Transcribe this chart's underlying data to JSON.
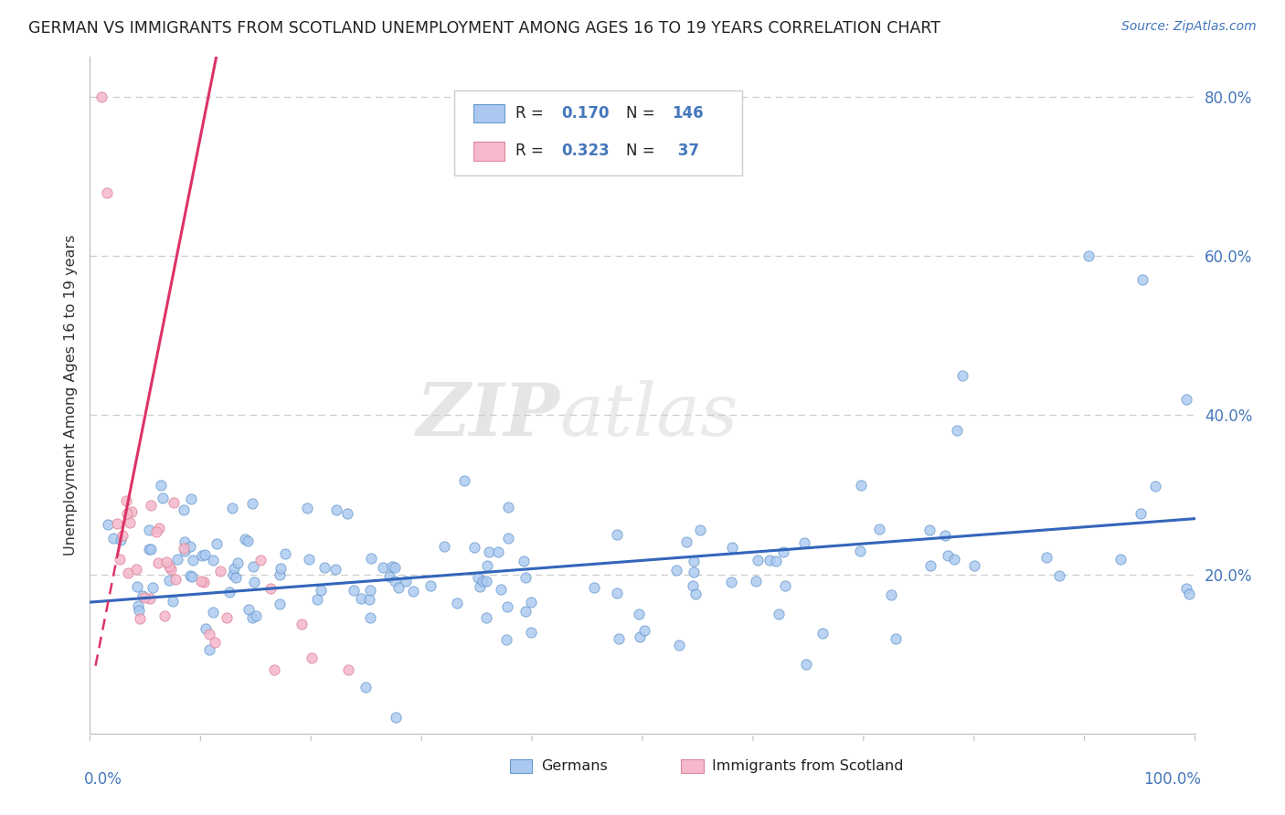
{
  "title": "GERMAN VS IMMIGRANTS FROM SCOTLAND UNEMPLOYMENT AMONG AGES 16 TO 19 YEARS CORRELATION CHART",
  "source": "Source: ZipAtlas.com",
  "ylabel": "Unemployment Among Ages 16 to 19 years",
  "xmin": 0.0,
  "xmax": 1.0,
  "ymin": 0.0,
  "ymax": 0.85,
  "german_color": "#aac8f0",
  "german_edge_color": "#6699cc",
  "scotland_color": "#f5b8cc",
  "scotland_edge_color": "#dd8899",
  "trendline_german_color": "#3366bb",
  "trendline_scotland_color": "#dd3366",
  "legend_r_german": "0.170",
  "legend_n_german": "146",
  "legend_r_scotland": "0.323",
  "legend_n_scotland": "37",
  "title_color": "#222222",
  "axis_color": "#4477bb",
  "grid_color": "#cccccc",
  "source_color": "#4477bb"
}
